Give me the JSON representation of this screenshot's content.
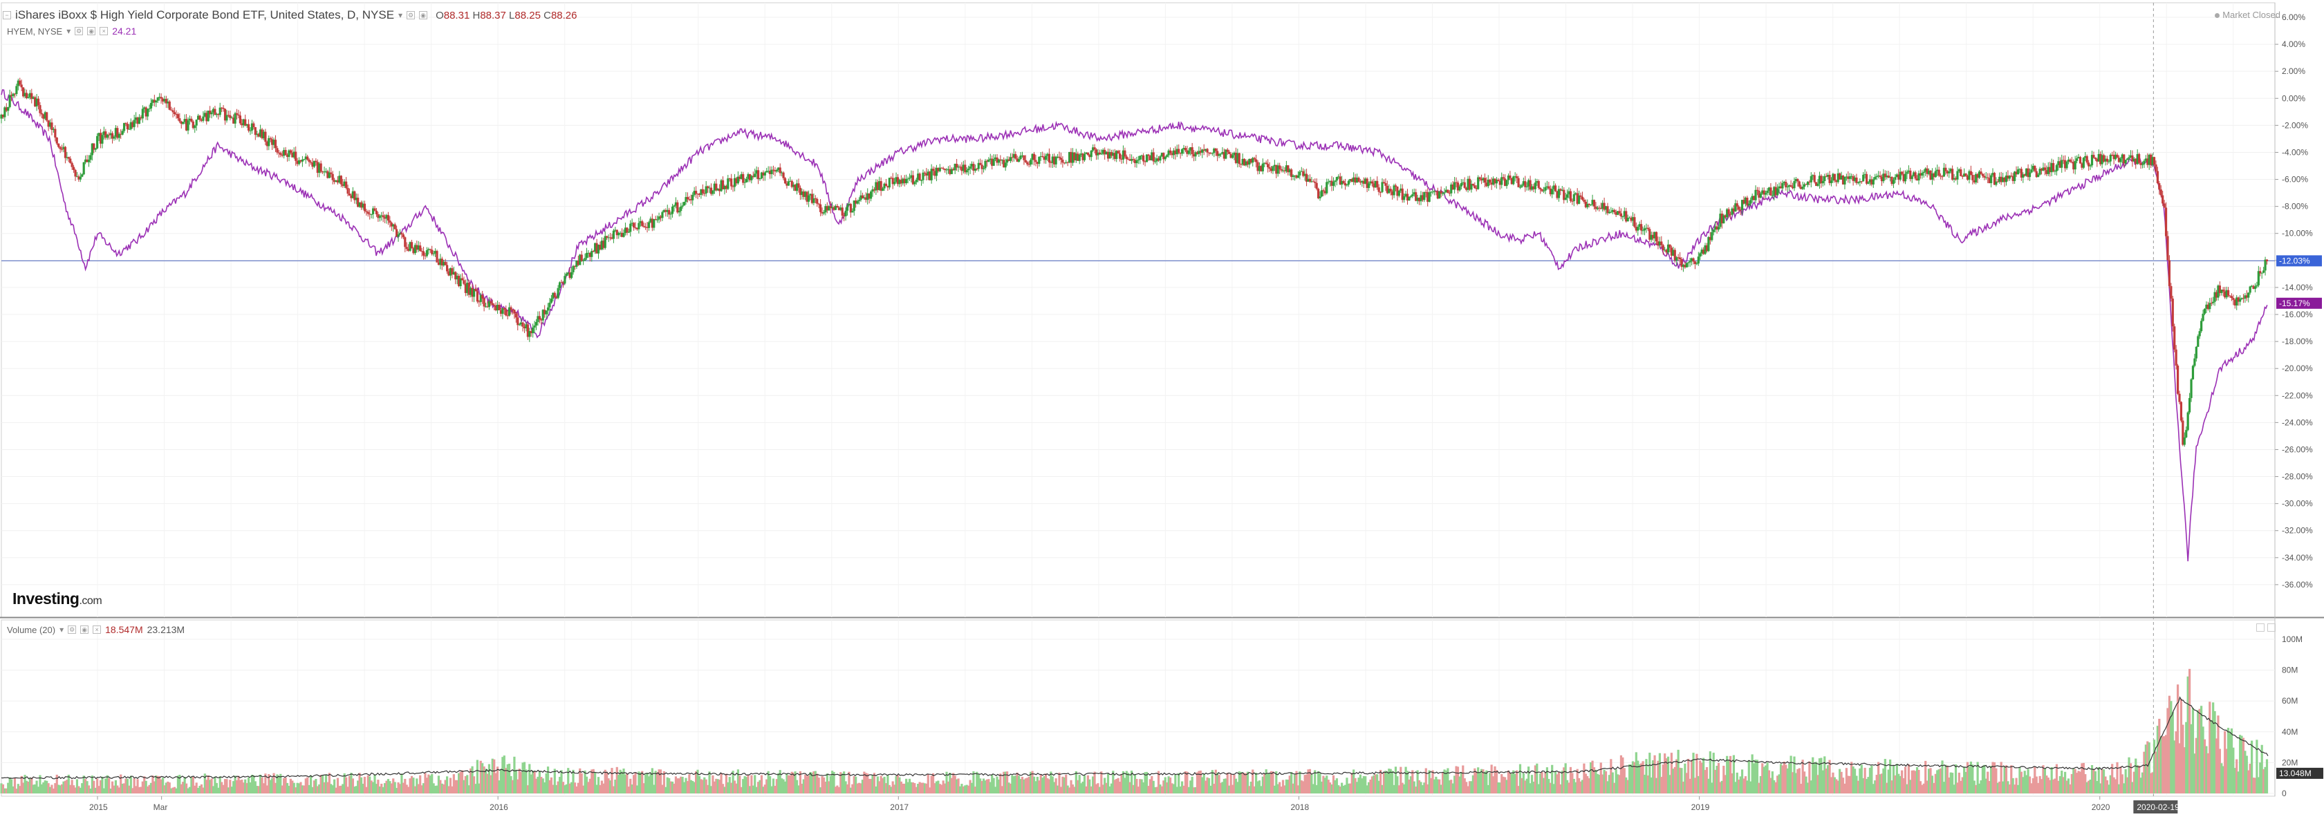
{
  "header": {
    "title": "iShares iBoxx $ High Yield Corporate Bond ETF, United States, D, NYSE",
    "open_label": "O",
    "open": "88.31",
    "high_label": "H",
    "high": "88.37",
    "low_label": "L",
    "low": "88.25",
    "close_label": "C",
    "close": "88.26",
    "market_status": "Market Closed"
  },
  "compare": {
    "name": "HYEM, NYSE",
    "value": "24.21"
  },
  "volume_panel": {
    "name": "Volume (20)",
    "value1": "18.547M",
    "value2": "23.213M"
  },
  "logo": {
    "brand": "Investing",
    "suffix": ".com"
  },
  "colors": {
    "up": "#2e9c3a",
    "down": "#c23a3a",
    "compare": "#9b30b5",
    "vol_up": "#8fd48f",
    "vol_down": "#e89a9a",
    "vol_ma": "#333333",
    "crosshair": "#6a7fc7",
    "last_pct_bg": "#3a64d8",
    "compare_pct_bg": "#8a1a9a"
  },
  "chart_data": {
    "type": "line",
    "x_labels": [
      "2015",
      "Mar",
      "2016",
      "2017",
      "2018",
      "2019",
      "2020",
      "2020-02-19"
    ],
    "x_label_times": [
      2015.0,
      2015.16,
      2016.0,
      2017.0,
      2018.0,
      2019.0,
      2020.0,
      2020.134
    ],
    "x_range": [
      2014.76,
      2020.42
    ],
    "y_range": [
      -38,
      6
    ],
    "y_tick_labels": [
      "6.00%",
      "4.00%",
      "2.00%",
      "0.00%",
      "-2.00%",
      "-4.00%",
      "-6.00%",
      "-8.00%",
      "-10.00%",
      "-12.00%",
      "-14.00%",
      "-16.00%",
      "-18.00%",
      "-20.00%",
      "-22.00%",
      "-24.00%",
      "-26.00%",
      "-28.00%",
      "-30.00%",
      "-32.00%",
      "-34.00%",
      "-36.00%"
    ],
    "y_ticks": [
      6,
      4,
      2,
      0,
      -2,
      -4,
      -6,
      -8,
      -10,
      -12,
      -14,
      -16,
      -18,
      -20,
      -22,
      -24,
      -26,
      -28,
      -30,
      -32,
      -34,
      -36
    ],
    "last_value_label": "-12.03%",
    "last_value": -12.03,
    "compare_last_label": "-15.17%",
    "compare_last": -15.17,
    "series": [
      {
        "type": "candlestick",
        "x": [
          2014.76,
          2014.8,
          2014.85,
          2014.9,
          2014.95,
          2015.0,
          2015.05,
          2015.1,
          2015.16,
          2015.22,
          2015.3,
          2015.38,
          2015.46,
          2015.54,
          2015.6,
          2015.66,
          2015.72,
          2015.78,
          2015.84,
          2015.9,
          2015.96,
          2016.0,
          2016.04,
          2016.08,
          2016.12,
          2016.2,
          2016.3,
          2016.4,
          2016.5,
          2016.6,
          2016.7,
          2016.8,
          2016.86,
          2016.95,
          2017.1,
          2017.2,
          2017.3,
          2017.4,
          2017.5,
          2017.6,
          2017.7,
          2017.8,
          2017.9,
          2018.0,
          2018.05,
          2018.1,
          2018.2,
          2018.3,
          2018.4,
          2018.5,
          2018.6,
          2018.7,
          2018.8,
          2018.9,
          2018.96,
          2019.0,
          2019.05,
          2019.15,
          2019.3,
          2019.45,
          2019.6,
          2019.75,
          2019.9,
          2020.0,
          2020.08,
          2020.134,
          2020.16,
          2020.19,
          2020.21,
          2020.23,
          2020.26,
          2020.3,
          2020.34,
          2020.38,
          2020.42
        ],
        "y": [
          -1.5,
          1.0,
          -0.5,
          -3.0,
          -6.0,
          -3.0,
          -2.5,
          -1.5,
          0.0,
          -2.0,
          -1.0,
          -2.0,
          -4.0,
          -5.0,
          -6.0,
          -8.0,
          -9.0,
          -11.0,
          -11.5,
          -13.5,
          -15.0,
          -15.5,
          -16.0,
          -17.5,
          -15.5,
          -12.0,
          -10.0,
          -9.0,
          -7.0,
          -6.0,
          -5.5,
          -8.0,
          -8.5,
          -6.5,
          -5.5,
          -5.0,
          -4.5,
          -4.5,
          -4.0,
          -4.5,
          -4.0,
          -4.0,
          -5.0,
          -5.5,
          -7.0,
          -6.0,
          -6.5,
          -7.5,
          -6.5,
          -6.0,
          -6.5,
          -7.5,
          -8.5,
          -10.5,
          -12.5,
          -12.0,
          -9.0,
          -7.0,
          -6.0,
          -6.0,
          -5.5,
          -6.0,
          -5.0,
          -4.5,
          -4.5,
          -4.5,
          -8.0,
          -20.0,
          -26.0,
          -20.0,
          -16.0,
          -14.0,
          -15.0,
          -14.0,
          -12.03
        ]
      },
      {
        "type": "line",
        "name": "HYEM, NYSE",
        "x": [
          2014.76,
          2014.82,
          2014.88,
          2014.92,
          2014.95,
          2014.97,
          2015.0,
          2015.05,
          2015.1,
          2015.16,
          2015.22,
          2015.3,
          2015.38,
          2015.46,
          2015.54,
          2015.62,
          2015.7,
          2015.76,
          2015.82,
          2015.88,
          2015.94,
          2016.0,
          2016.05,
          2016.1,
          2016.15,
          2016.2,
          2016.3,
          2016.4,
          2016.5,
          2016.6,
          2016.7,
          2016.8,
          2016.85,
          2016.9,
          2017.0,
          2017.1,
          2017.2,
          2017.3,
          2017.4,
          2017.5,
          2017.6,
          2017.7,
          2017.8,
          2017.9,
          2018.0,
          2018.1,
          2018.2,
          2018.3,
          2018.4,
          2018.5,
          2018.55,
          2018.6,
          2018.65,
          2018.7,
          2018.8,
          2018.9,
          2018.95,
          2019.0,
          2019.05,
          2019.1,
          2019.2,
          2019.3,
          2019.4,
          2019.5,
          2019.58,
          2019.65,
          2019.75,
          2019.85,
          2019.95,
          2020.05,
          2020.1,
          2020.134,
          2020.16,
          2020.19,
          2020.22,
          2020.24,
          2020.26,
          2020.3,
          2020.34,
          2020.38,
          2020.42
        ],
        "y": [
          0.5,
          -1.0,
          -3.0,
          -8.0,
          -10.5,
          -12.5,
          -10.0,
          -11.5,
          -10.5,
          -8.5,
          -7.0,
          -3.5,
          -5.0,
          -6.0,
          -7.5,
          -9.0,
          -11.5,
          -10.0,
          -8.0,
          -11.0,
          -14.0,
          -15.5,
          -16.0,
          -17.5,
          -14.5,
          -11.0,
          -9.0,
          -7.0,
          -4.0,
          -2.5,
          -3.0,
          -5.0,
          -9.5,
          -6.0,
          -4.0,
          -3.0,
          -3.0,
          -2.5,
          -2.0,
          -3.0,
          -2.5,
          -2.0,
          -2.5,
          -3.0,
          -3.5,
          -3.5,
          -4.0,
          -6.0,
          -8.0,
          -10.0,
          -10.5,
          -10.0,
          -12.5,
          -11.0,
          -10.0,
          -11.0,
          -12.5,
          -10.5,
          -9.0,
          -8.5,
          -7.0,
          -7.5,
          -7.5,
          -7.0,
          -8.0,
          -10.5,
          -9.0,
          -8.0,
          -6.5,
          -5.0,
          -4.5,
          -5.0,
          -8.0,
          -22.0,
          -34.0,
          -26.0,
          -24.0,
          -20.0,
          -19.0,
          -18.0,
          -15.17
        ]
      }
    ],
    "volume": {
      "y_range": [
        0,
        100
      ],
      "y_tick_labels": [
        "100M",
        "80M",
        "60M",
        "40M",
        "20M",
        "0"
      ],
      "y_ticks": [
        100,
        80,
        60,
        40,
        20,
        0
      ],
      "last_label": "13.048M",
      "last_value": 13.048,
      "ma_x": [
        2014.76,
        2015.5,
        2016.0,
        2016.3,
        2017.0,
        2018.0,
        2018.7,
        2019.0,
        2019.2,
        2019.6,
        2020.0,
        2020.12,
        2020.16,
        2020.2,
        2020.26,
        2020.32,
        2020.42
      ],
      "ma_y": [
        10,
        11,
        15,
        13,
        12,
        13,
        14,
        22,
        20,
        18,
        16,
        18,
        40,
        62,
        50,
        40,
        25
      ],
      "bar_envelope_x": [
        2014.76,
        2015.9,
        2016.0,
        2016.1,
        2017.0,
        2018.0,
        2018.7,
        2018.9,
        2019.0,
        2019.5,
        2020.0,
        2020.1,
        2020.16,
        2020.2,
        2020.3,
        2020.42
      ],
      "bar_envelope_y": [
        12,
        14,
        30,
        18,
        14,
        16,
        20,
        30,
        28,
        22,
        20,
        25,
        60,
        90,
        55,
        30
      ]
    }
  }
}
